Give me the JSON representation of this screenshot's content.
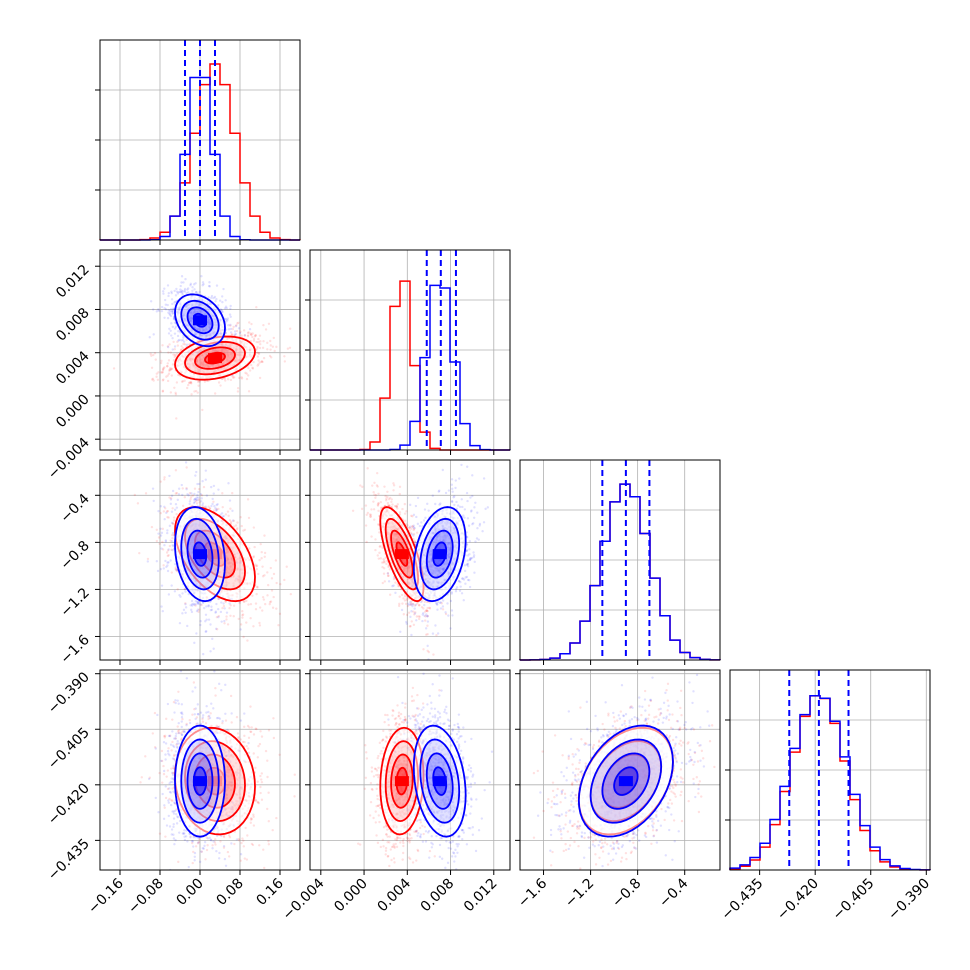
{
  "chart_data": {
    "type": "corner",
    "grid": true,
    "colors": {
      "model_a": "#0000ff",
      "model_b": "#ff0000"
    },
    "parameters": [
      {
        "range": [
          -0.2,
          0.2
        ],
        "ticks": [
          "−0.16",
          "−0.08",
          "0.00",
          "0.08",
          "0.16"
        ],
        "tick_values": [
          -0.16,
          -0.08,
          0.0,
          0.08,
          0.16
        ]
      },
      {
        "range": [
          -0.005,
          0.0135
        ],
        "ticks": [
          "−0.004",
          "0.000",
          "0.004",
          "0.008",
          "0.012"
        ],
        "tick_values": [
          -0.004,
          0.0,
          0.004,
          0.008,
          0.012
        ]
      },
      {
        "range": [
          -1.8,
          -0.1
        ],
        "ticks": [
          "−1.6",
          "−1.2",
          "−0.8",
          "−0.4"
        ],
        "tick_values": [
          -1.6,
          -1.2,
          -0.8,
          -0.4
        ]
      },
      {
        "range": [
          -0.443,
          -0.389
        ],
        "ticks": [
          "−0.435",
          "−0.420",
          "−0.405",
          "−0.390"
        ],
        "tick_values": [
          -0.435,
          -0.42,
          -0.405,
          -0.39
        ]
      }
    ],
    "series": [
      {
        "color": "#0000ff",
        "mean": [
          0.0,
          0.007,
          -0.9,
          -0.419
        ],
        "std": [
          0.025,
          0.0012,
          0.2,
          0.0075
        ],
        "quantiles": [
          [
            -0.03,
            0.0,
            0.03
          ],
          [
            0.0058,
            0.0071,
            0.0085
          ],
          [
            -1.1,
            -0.9,
            -0.7
          ],
          [
            -0.427,
            -0.419,
            -0.411
          ]
        ]
      },
      {
        "color": "#ff0000",
        "mean": [
          0.03,
          0.0035,
          -0.9,
          -0.419
        ],
        "std": [
          0.04,
          0.001,
          0.2,
          0.0072
        ]
      }
    ],
    "correlations": {
      "blue": {
        "0-1": -0.3,
        "0-2": -0.2,
        "1-2": 0.3,
        "0-3": 0.0,
        "1-3": -0.25,
        "2-3": 0.35
      },
      "red": {
        "0-1": 0.3,
        "0-2": -0.5,
        "1-2": -0.7,
        "0-3": -0.1,
        "1-3": 0.1,
        "2-3": 0.35
      }
    }
  }
}
